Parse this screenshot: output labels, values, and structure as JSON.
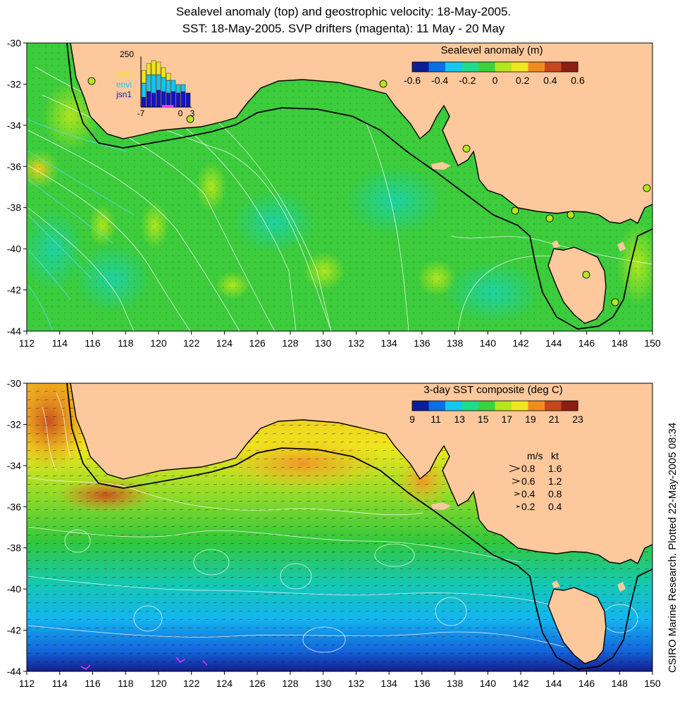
{
  "header": {
    "line1": "Sealevel anomaly (top) and geostrophic velocity: 18-May-2005.",
    "line2": "SST: 18-May-2005. SVP drifters (magenta): 11 May - 20 May"
  },
  "credit": "CSIRO Marine Research. Plotted 22-May-2005 08:34",
  "axes": {
    "lon_min": 112,
    "lon_max": 150,
    "lat_min": -44,
    "lat_max": -30,
    "x_ticks": [
      "112",
      "114",
      "116",
      "118",
      "120",
      "122",
      "124",
      "126",
      "128",
      "130",
      "132",
      "134",
      "136",
      "138",
      "140",
      "142",
      "144",
      "146",
      "148",
      "150"
    ],
    "y_ticks": [
      "-30",
      "-32",
      "-34",
      "-36",
      "-38",
      "-40",
      "-42",
      "-44"
    ]
  },
  "colors": {
    "land": "#fcc89c",
    "ocean_mid": "#33cc33",
    "colorbar": [
      "#0a1e9a",
      "#0a6ee6",
      "#14c8f0",
      "#1edc8c",
      "#3cd23c",
      "#b4e61e",
      "#f0e61e",
      "#f08c1e",
      "#c8461e",
      "#8c1e14"
    ]
  },
  "maps": [
    {
      "id": "sla",
      "colorbar_title": "Sealevel anomaly (m)",
      "colorbar_labels": [
        "-0.6",
        "-0.4",
        "-0.2",
        "0",
        "0.2",
        "0.4",
        "0.6"
      ],
      "inset": {
        "y_label": "250",
        "x_labels": [
          "-7",
          "0",
          "3"
        ],
        "legend": [
          {
            "label": "GFO",
            "color": "#f0e61e"
          },
          {
            "label": "envi",
            "color": "#14c8f0"
          },
          {
            "label": "jsn1",
            "color": "#1414c8"
          }
        ]
      }
    },
    {
      "id": "sst",
      "colorbar_title": "3-day SST composite (deg C)",
      "colorbar_labels": [
        "9",
        "11",
        "13",
        "15",
        "17",
        "19",
        "21",
        "23"
      ],
      "velocity_key": {
        "header_ms": "m/s",
        "header_kt": "kt",
        "rows": [
          {
            "ms": "0.8",
            "kt": "1.6"
          },
          {
            "ms": "0.6",
            "kt": "1.2"
          },
          {
            "ms": "0.4",
            "kt": "0.8"
          },
          {
            "ms": "0.2",
            "kt": "0.4"
          }
        ]
      }
    }
  ]
}
